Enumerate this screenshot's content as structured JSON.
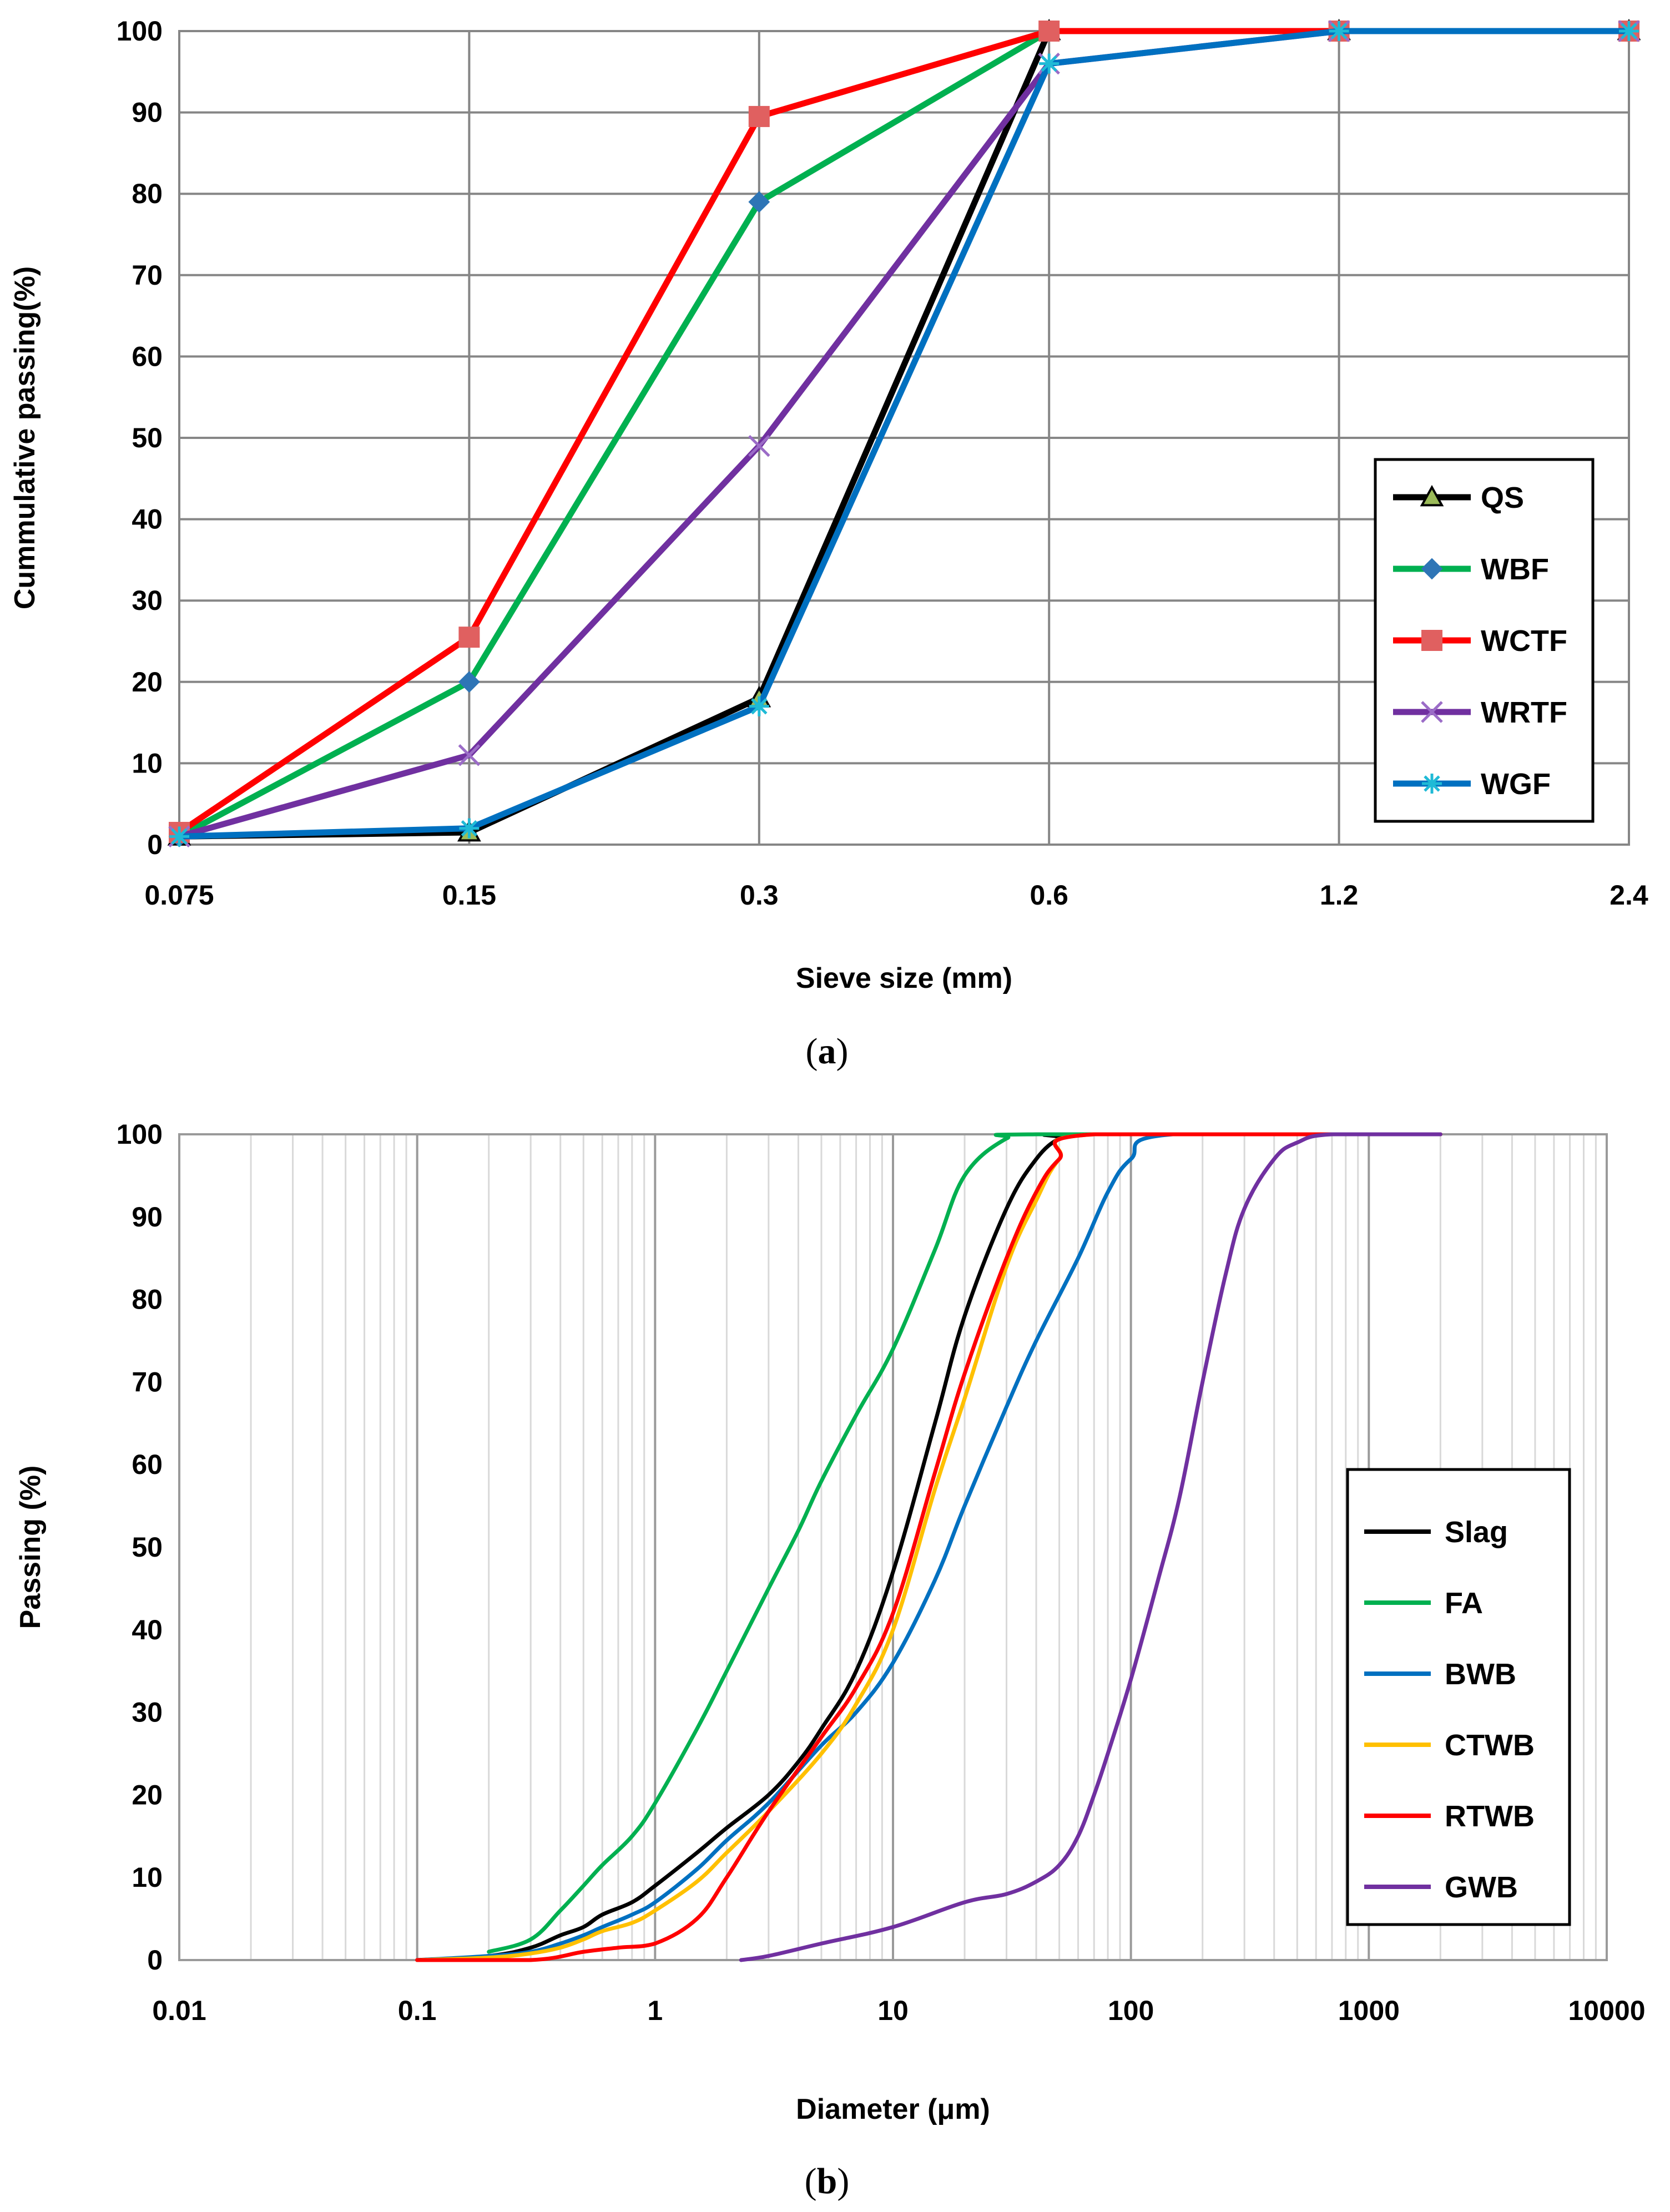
{
  "chart_data": [
    {
      "type": "line",
      "panel": "a",
      "caption_prefix": "(",
      "caption_letter": "a",
      "caption_suffix": ")",
      "title": "",
      "xlabel": "Sieve size (mm)",
      "ylabel": "Cummulative passing(%)",
      "x_scale": "categorical",
      "categories": [
        "0.075",
        "0.15",
        "0.3",
        "0.6",
        "1.2",
        "2.4"
      ],
      "ylim": [
        0,
        100
      ],
      "yticks": [
        0,
        10,
        20,
        30,
        40,
        50,
        60,
        70,
        80,
        90,
        100
      ],
      "grid": true,
      "legend_position": "right",
      "series": [
        {
          "name": "QS",
          "color": "#000000",
          "marker": "triangle",
          "marker_color": "#9bbb59",
          "values": [
            1,
            1.5,
            18,
            100,
            100,
            100
          ]
        },
        {
          "name": "WBF",
          "color": "#00b050",
          "marker": "diamond",
          "marker_color": "#2e75b6",
          "values": [
            1,
            20,
            79,
            100,
            100,
            100
          ]
        },
        {
          "name": "WCTF",
          "color": "#ff0000",
          "marker": "square",
          "marker_color": "#e06060",
          "values": [
            1.5,
            25.5,
            89.5,
            100,
            100,
            100
          ]
        },
        {
          "name": "WRTF",
          "color": "#7030a0",
          "marker": "x",
          "marker_color": "#9b6cc7",
          "values": [
            1,
            11,
            49,
            96,
            100,
            100
          ]
        },
        {
          "name": "WGF",
          "color": "#0070c0",
          "marker": "star",
          "marker_color": "#1fbad6",
          "values": [
            1,
            2,
            17,
            96,
            100,
            100
          ]
        }
      ]
    },
    {
      "type": "line",
      "panel": "b",
      "caption_prefix": "(",
      "caption_letter": "b",
      "caption_suffix": ")",
      "title": "",
      "xlabel": "Diameter (μm)",
      "ylabel": "Passing (%)",
      "x_scale": "log",
      "xlim": [
        0.01,
        10000
      ],
      "xticks": [
        "0.01",
        "0.1",
        "1",
        "10",
        "100",
        "1000",
        "10000"
      ],
      "ylim": [
        0,
        100
      ],
      "yticks": [
        0,
        10,
        20,
        30,
        40,
        50,
        60,
        70,
        80,
        90,
        100
      ],
      "grid": true,
      "legend_position": "right",
      "series": [
        {
          "name": "Slag",
          "color": "#000000",
          "points": [
            [
              0.1,
              0
            ],
            [
              0.2,
              0.5
            ],
            [
              0.3,
              1.5
            ],
            [
              0.4,
              3
            ],
            [
              0.5,
              4
            ],
            [
              0.6,
              5.5
            ],
            [
              0.8,
              7
            ],
            [
              1,
              9
            ],
            [
              1.5,
              13
            ],
            [
              2,
              16
            ],
            [
              3,
              20
            ],
            [
              4,
              24
            ],
            [
              5,
              28
            ],
            [
              7,
              35
            ],
            [
              10,
              47
            ],
            [
              15,
              65
            ],
            [
              20,
              78
            ],
            [
              30,
              91
            ],
            [
              40,
              97
            ],
            [
              50,
              99.5
            ],
            [
              60,
              100
            ],
            [
              2000,
              100
            ]
          ]
        },
        {
          "name": "FA",
          "color": "#00b050",
          "points": [
            [
              0.2,
              1
            ],
            [
              0.3,
              2.5
            ],
            [
              0.4,
              6
            ],
            [
              0.5,
              9
            ],
            [
              0.6,
              11.5
            ],
            [
              0.8,
              15
            ],
            [
              1,
              19
            ],
            [
              1.5,
              28
            ],
            [
              2,
              35
            ],
            [
              3,
              45
            ],
            [
              4,
              52
            ],
            [
              5,
              58
            ],
            [
              7,
              66
            ],
            [
              10,
              74
            ],
            [
              15,
              86
            ],
            [
              20,
              95
            ],
            [
              30,
              99.5
            ],
            [
              40,
              100
            ],
            [
              2000,
              100
            ]
          ]
        },
        {
          "name": "BWB",
          "color": "#0070c0",
          "points": [
            [
              0.1,
              0
            ],
            [
              0.2,
              0.5
            ],
            [
              0.3,
              1
            ],
            [
              0.4,
              2
            ],
            [
              0.5,
              3
            ],
            [
              0.6,
              4
            ],
            [
              0.8,
              5.5
            ],
            [
              1,
              7
            ],
            [
              1.5,
              11
            ],
            [
              2,
              14.5
            ],
            [
              3,
              19
            ],
            [
              5,
              26
            ],
            [
              7,
              30
            ],
            [
              10,
              36
            ],
            [
              15,
              46
            ],
            [
              20,
              55
            ],
            [
              30,
              67
            ],
            [
              40,
              75
            ],
            [
              60,
              85
            ],
            [
              80,
              93
            ],
            [
              100,
              97
            ],
            [
              150,
              100
            ],
            [
              2000,
              100
            ]
          ]
        },
        {
          "name": "CTWB",
          "color": "#ffc000",
          "points": [
            [
              0.1,
              0
            ],
            [
              0.2,
              0.3
            ],
            [
              0.3,
              0.8
            ],
            [
              0.4,
              1.5
            ],
            [
              0.5,
              2.5
            ],
            [
              0.6,
              3.5
            ],
            [
              0.8,
              4.5
            ],
            [
              1,
              6
            ],
            [
              1.5,
              9.5
            ],
            [
              2,
              13
            ],
            [
              3,
              18
            ],
            [
              5,
              25
            ],
            [
              7,
              31
            ],
            [
              10,
              40
            ],
            [
              15,
              57
            ],
            [
              20,
              68
            ],
            [
              30,
              84
            ],
            [
              40,
              92
            ],
            [
              50,
              97
            ],
            [
              70,
              100
            ],
            [
              2000,
              100
            ]
          ]
        },
        {
          "name": "RTWB",
          "color": "#ff0000",
          "points": [
            [
              0.1,
              0
            ],
            [
              0.3,
              0
            ],
            [
              0.5,
              1
            ],
            [
              0.7,
              1.5
            ],
            [
              1,
              2
            ],
            [
              1.5,
              5
            ],
            [
              2,
              10
            ],
            [
              3,
              18
            ],
            [
              5,
              27
            ],
            [
              7,
              33
            ],
            [
              10,
              42
            ],
            [
              15,
              59
            ],
            [
              20,
              71
            ],
            [
              30,
              85
            ],
            [
              40,
              93
            ],
            [
              50,
              97
            ],
            [
              70,
              100
            ],
            [
              2000,
              100
            ]
          ]
        },
        {
          "name": "GWB",
          "color": "#7030a0",
          "points": [
            [
              2.3,
              0
            ],
            [
              3,
              0.5
            ],
            [
              5,
              2
            ],
            [
              10,
              4
            ],
            [
              20,
              7
            ],
            [
              30,
              8
            ],
            [
              40,
              9.5
            ],
            [
              50,
              11.5
            ],
            [
              60,
              15
            ],
            [
              70,
              20
            ],
            [
              80,
              25
            ],
            [
              100,
              34
            ],
            [
              130,
              46
            ],
            [
              160,
              56
            ],
            [
              200,
              70
            ],
            [
              250,
              83
            ],
            [
              300,
              91
            ],
            [
              400,
              97
            ],
            [
              500,
              99
            ],
            [
              700,
              100
            ],
            [
              2000,
              100
            ]
          ]
        }
      ]
    }
  ]
}
